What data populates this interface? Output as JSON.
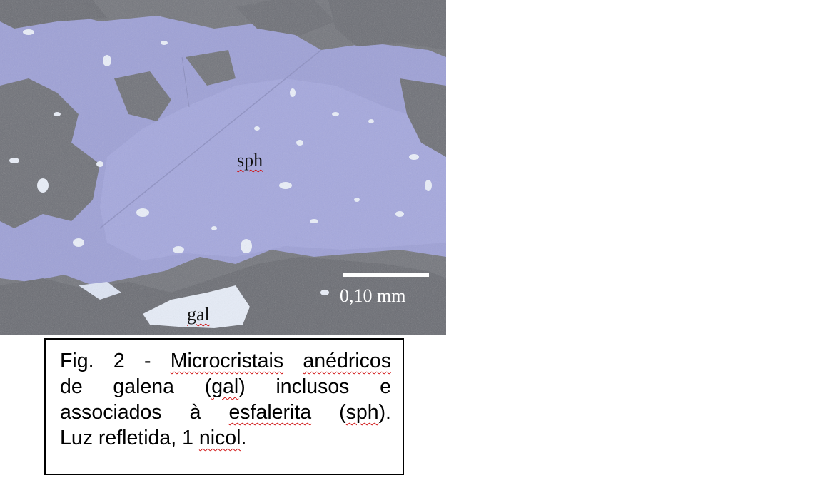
{
  "figure": {
    "photo_label_sph": "sph",
    "photo_label_gal": "gal",
    "scale_label": "0,10 mm",
    "colors": {
      "sphalerite": "#9fa2d8",
      "gangue": "#77787f",
      "galena": "#e8eef8",
      "spellcheck_underline": "#d01010"
    }
  },
  "caption": {
    "lines": [
      [
        {
          "text": "Fig. 2 - "
        },
        {
          "text": "Microcristais",
          "flag": true
        },
        {
          "text": " "
        },
        {
          "text": "anédricos",
          "flag": true
        }
      ],
      [
        {
          "text": "de galena ("
        },
        {
          "text": "gal",
          "flag": true
        },
        {
          "text": ") inclusos e"
        }
      ],
      [
        {
          "text": "associados à "
        },
        {
          "text": "esfalerita",
          "flag": true
        },
        {
          "text": " ("
        },
        {
          "text": "sph",
          "flag": true
        },
        {
          "text": ")."
        }
      ],
      [
        {
          "text": "Luz refletida, 1 "
        },
        {
          "text": "nicol",
          "flag": true
        },
        {
          "text": "."
        }
      ]
    ]
  }
}
